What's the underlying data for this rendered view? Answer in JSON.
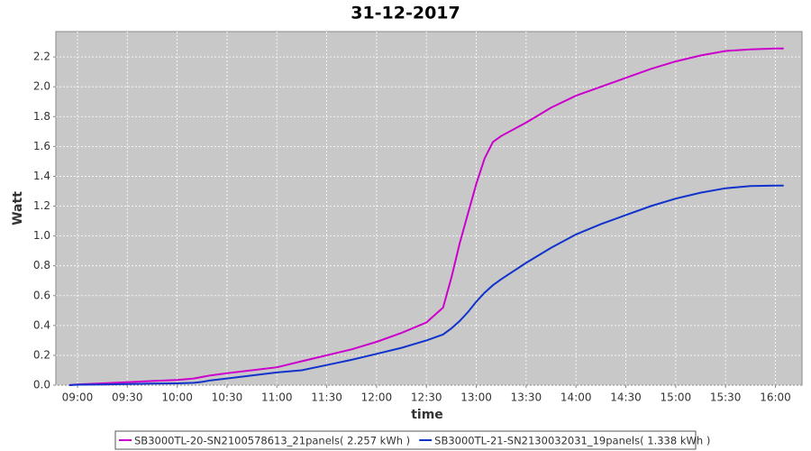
{
  "chart_data": {
    "type": "line",
    "title": "31-12-2017",
    "x_label": "time",
    "y_label": "Watt",
    "x": [
      "08:55",
      "09:00",
      "09:15",
      "09:30",
      "09:45",
      "10:00",
      "10:10",
      "10:15",
      "10:20",
      "10:30",
      "10:45",
      "11:00",
      "11:15",
      "11:30",
      "11:45",
      "12:00",
      "12:15",
      "12:30",
      "12:40",
      "12:45",
      "12:50",
      "12:55",
      "13:00",
      "13:05",
      "13:10",
      "13:15",
      "13:30",
      "13:45",
      "14:00",
      "14:15",
      "14:30",
      "14:45",
      "15:00",
      "15:15",
      "15:30",
      "15:45",
      "16:00",
      "16:05"
    ],
    "series": [
      {
        "name": "SB3000TL-20-SN2100578613_21panels( 2.257 kWh )",
        "color": "#cc00cc",
        "values": [
          0.0,
          0.005,
          0.012,
          0.02,
          0.028,
          0.035,
          0.045,
          0.055,
          0.065,
          0.08,
          0.1,
          0.12,
          0.16,
          0.2,
          0.24,
          0.29,
          0.35,
          0.42,
          0.52,
          0.72,
          0.95,
          1.15,
          1.35,
          1.52,
          1.63,
          1.67,
          1.76,
          1.86,
          1.94,
          2.0,
          2.06,
          2.12,
          2.17,
          2.21,
          2.24,
          2.25,
          2.257,
          2.257
        ]
      },
      {
        "name": "SB3000TL-21-SN2130032031_19panels( 1.338 kWh )",
        "color": "#1133cc",
        "values": [
          0.0,
          0.003,
          0.005,
          0.008,
          0.01,
          0.012,
          0.016,
          0.022,
          0.032,
          0.045,
          0.065,
          0.085,
          0.1,
          0.135,
          0.17,
          0.21,
          0.25,
          0.3,
          0.34,
          0.38,
          0.43,
          0.49,
          0.56,
          0.62,
          0.67,
          0.71,
          0.82,
          0.92,
          1.01,
          1.08,
          1.14,
          1.2,
          1.25,
          1.29,
          1.32,
          1.335,
          1.338,
          1.338
        ]
      }
    ],
    "xlim": [
      "08:47",
      "16:16"
    ],
    "xticks": [
      "09:00",
      "09:30",
      "10:00",
      "10:30",
      "11:00",
      "11:30",
      "12:00",
      "12:30",
      "13:00",
      "13:30",
      "14:00",
      "14:30",
      "15:00",
      "15:30",
      "16:00"
    ],
    "ylim": [
      0,
      2.37
    ],
    "yticks": [
      {
        "value": 0,
        "label": "0.0"
      },
      0.2,
      0.4,
      0.6,
      0.8,
      {
        "value": 1,
        "label": "1.0"
      },
      1.2,
      1.4,
      1.6,
      1.8,
      {
        "value": 2,
        "label": "2.0"
      },
      2.2
    ],
    "grid": true,
    "legend": "bottom"
  }
}
